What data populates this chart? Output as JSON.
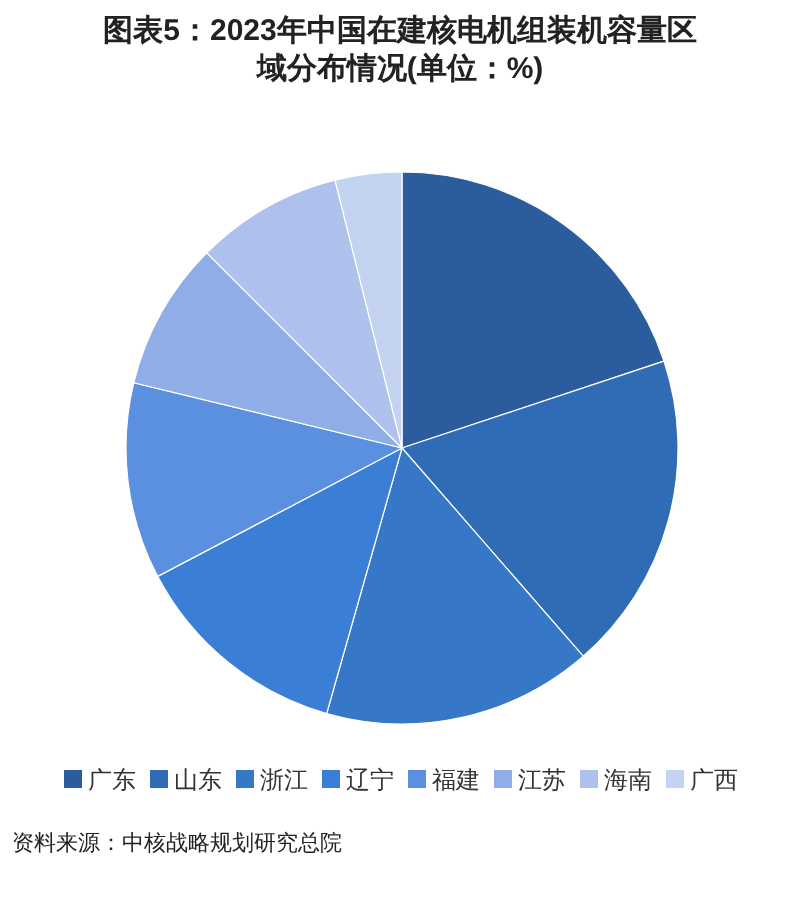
{
  "chart_data": {
    "type": "pie",
    "title": "图表5：2023年中国在建核电机组装机容量区域分布情况(单位：%)",
    "categories": [
      "广东",
      "山东",
      "浙江",
      "辽宁",
      "福建",
      "江苏",
      "海南",
      "广西"
    ],
    "values": [
      19.9,
      18.7,
      15.8,
      12.9,
      11.5,
      8.7,
      8.6,
      3.9
    ],
    "colors": [
      "#2b5c9e",
      "#306bb5",
      "#3777c8",
      "#3a7fd5",
      "#5b8fe0",
      "#8faee8",
      "#adc1ec",
      "#c5d3f2"
    ],
    "legend": "bottom",
    "annotations": [
      "资料来源：中核战略规划研究总院"
    ]
  }
}
